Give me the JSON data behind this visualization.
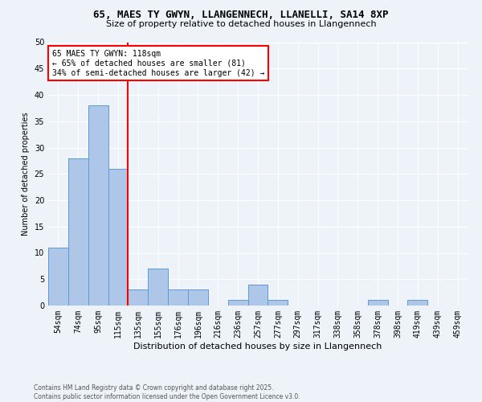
{
  "title1": "65, MAES TY GWYN, LLANGENNECH, LLANELLI, SA14 8XP",
  "title2": "Size of property relative to detached houses in Llangennech",
  "xlabel": "Distribution of detached houses by size in Llangennech",
  "ylabel": "Number of detached properties",
  "bins": [
    "54sqm",
    "74sqm",
    "95sqm",
    "115sqm",
    "135sqm",
    "155sqm",
    "176sqm",
    "196sqm",
    "216sqm",
    "236sqm",
    "257sqm",
    "277sqm",
    "297sqm",
    "317sqm",
    "338sqm",
    "358sqm",
    "378sqm",
    "398sqm",
    "419sqm",
    "439sqm",
    "459sqm"
  ],
  "values": [
    11,
    28,
    38,
    26,
    3,
    7,
    3,
    3,
    0,
    1,
    4,
    1,
    0,
    0,
    0,
    0,
    1,
    0,
    1,
    0,
    0
  ],
  "bar_color": "#aec6e8",
  "bar_edge_color": "#5b9bd5",
  "red_line_x": 3.5,
  "annotation_line1": "65 MAES TY GWYN: 118sqm",
  "annotation_line2": "← 65% of detached houses are smaller (81)",
  "annotation_line3": "34% of semi-detached houses are larger (42) →",
  "annotation_box_color": "white",
  "annotation_box_edge": "red",
  "ylim": [
    0,
    50
  ],
  "yticks": [
    0,
    5,
    10,
    15,
    20,
    25,
    30,
    35,
    40,
    45,
    50
  ],
  "footnote": "Contains HM Land Registry data © Crown copyright and database right 2025.\nContains public sector information licensed under the Open Government Licence v3.0.",
  "background_color": "#eef2f9",
  "grid_color": "#ffffff",
  "title1_fontsize": 9,
  "title2_fontsize": 8,
  "xlabel_fontsize": 8,
  "ylabel_fontsize": 7,
  "tick_fontsize": 7,
  "annot_fontsize": 7,
  "footnote_fontsize": 5.5
}
